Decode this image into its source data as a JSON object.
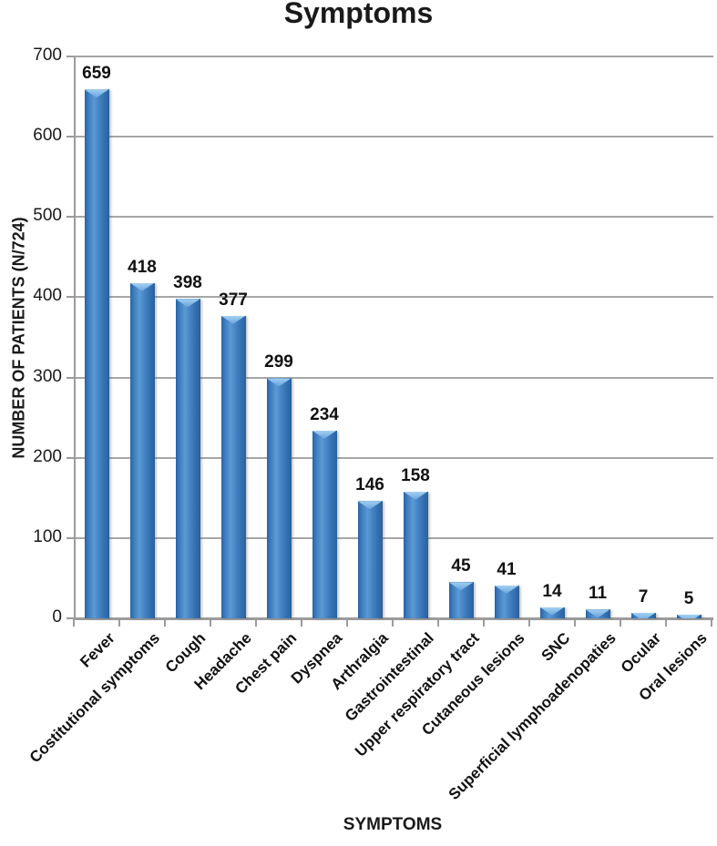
{
  "title": "Symptoms",
  "colors": {
    "bar_main": "#3c7cbe",
    "bar_edge": "#2a62a4",
    "bar_highlight": "#5c9ad4",
    "bar_cap": "#a3d0f2",
    "gridline": "#a6a6a6",
    "axis": "#9b9b9b",
    "text": "#1a1a1a"
  },
  "chart_data": {
    "type": "bar",
    "title": "Symptoms",
    "xlabel": "SYMPTOMS",
    "ylabel": "NUMBER OF PATIENTS (N/724)",
    "categories": [
      "Fever",
      "Costitutional symptoms",
      "Cough",
      "Headache",
      "Chest pain",
      "Dyspnea",
      "Arthralgia",
      "Gastrointestinal",
      "Upper respiratory tract",
      "Cutaneous lesions",
      "SNC",
      "Superficial lymphoadenopaties",
      "Ocular",
      "Oral lesions"
    ],
    "values": [
      659,
      418,
      398,
      377,
      299,
      234,
      146,
      158,
      45,
      41,
      14,
      11,
      7,
      5
    ],
    "ylim": [
      0,
      700
    ],
    "ytick_step": 100,
    "grid": true,
    "bar_labels": true,
    "legend": "none"
  }
}
